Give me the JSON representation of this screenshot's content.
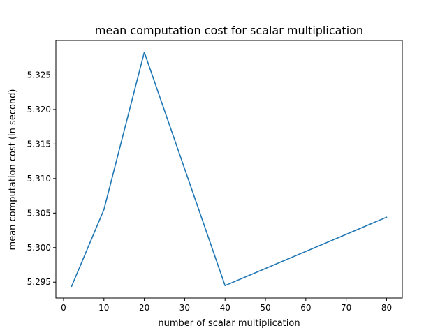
{
  "chart_data": {
    "type": "line",
    "title": "mean computation cost for scalar multiplication",
    "xlabel": "number of scalar multiplication",
    "ylabel": "mean computation cost (in second)",
    "xlim": [
      -1.9,
      83.9
    ],
    "ylim": [
      5.2927,
      5.33
    ],
    "x_ticks": [
      0,
      10,
      20,
      30,
      40,
      50,
      60,
      70,
      80
    ],
    "x_tick_labels": [
      "0",
      "10",
      "20",
      "30",
      "40",
      "50",
      "60",
      "70",
      "80"
    ],
    "y_ticks": [
      5.295,
      5.3,
      5.305,
      5.31,
      5.315,
      5.32,
      5.325
    ],
    "y_tick_labels": [
      "5.295",
      "5.300",
      "5.305",
      "5.310",
      "5.315",
      "5.320",
      "5.325"
    ],
    "grid": false,
    "series": [
      {
        "x": [
          2,
          10,
          20,
          40,
          80
        ],
        "values": [
          5.2944,
          5.3055,
          5.3283,
          5.2945,
          5.3044
        ],
        "color": "#1f77b4"
      }
    ]
  }
}
